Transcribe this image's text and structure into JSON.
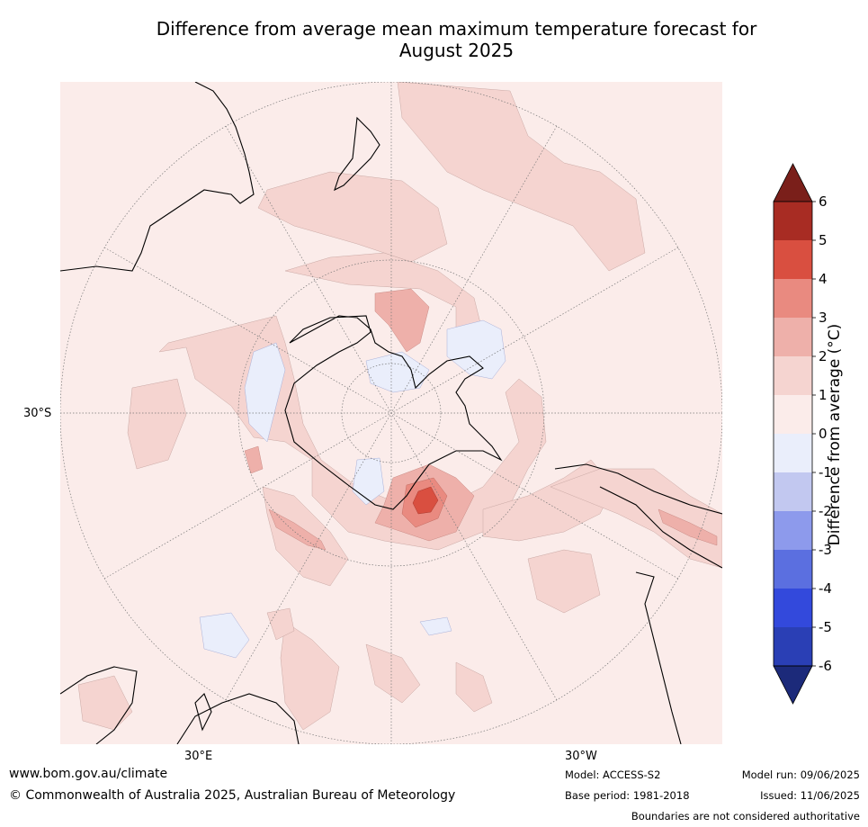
{
  "title_line1": "Difference from average mean maximum temperature forecast for",
  "title_line2": "August 2025",
  "graticule_labels": {
    "lat_30s": "30°S",
    "lon_30e": "30°E",
    "lon_30w": "30°W"
  },
  "colorbar": {
    "label": "Difference from average (°C)",
    "ticks": [
      "6",
      "5",
      "4",
      "3",
      "2",
      "1",
      "0",
      "-1",
      "-2",
      "-3",
      "-4",
      "-5",
      "-6"
    ],
    "bands_top_to_bottom": [
      "#a82c23",
      "#d94f40",
      "#e98a80",
      "#eeb0aa",
      "#f5d4d0",
      "#fbecea",
      "#eaeefb",
      "#c2c8f0",
      "#8d9aec",
      "#5b6fe0",
      "#3349dc",
      "#2a3fb5"
    ],
    "extend_max_color": "#7a1f1a",
    "extend_min_color": "#1c2a7a"
  },
  "footer": {
    "url": "www.bom.gov.au/climate",
    "copyright": "© Commonwealth of Australia 2025, Australian Bureau of Meteorology",
    "model": "Model: ACCESS-S2",
    "base_period": "Base period: 1981-2018",
    "model_run": "Model run: 09/06/2025",
    "issued": "Issued: 11/06/2025",
    "disclaimer": "Boundaries are not considered authoritative"
  }
}
